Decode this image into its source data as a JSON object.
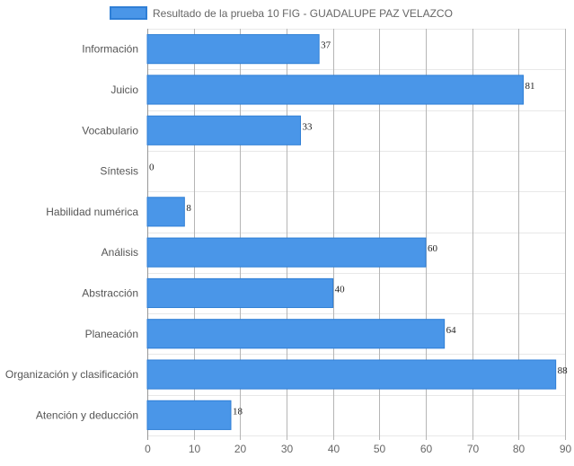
{
  "chart_data": {
    "type": "bar",
    "orientation": "horizontal",
    "categories": [
      "Información",
      "Juicio",
      "Vocabulario",
      "Síntesis",
      "Habilidad numérica",
      "Análisis",
      "Abstracción",
      "Planeación",
      "Organización y clasificación",
      "Atención y deducción"
    ],
    "series": [
      {
        "name": "Resultado de la prueba 10 FIG - GUADALUPE PAZ VELAZCO",
        "values": [
          37,
          81,
          33,
          0,
          8,
          60,
          40,
          64,
          88,
          18
        ],
        "color": "#4a96e8",
        "border_color": "#2f7fd6"
      }
    ],
    "xlim": [
      0,
      90
    ],
    "x_ticks": [
      "0",
      "10",
      "20",
      "30",
      "40",
      "50",
      "60",
      "70",
      "80",
      "90"
    ],
    "grid": true,
    "legend_position": "top",
    "data_labels": true
  },
  "colors": {
    "grid_vertical": "#b5b5b5",
    "grid_horizontal": "#e8e8e8",
    "axis": "#999999"
  }
}
